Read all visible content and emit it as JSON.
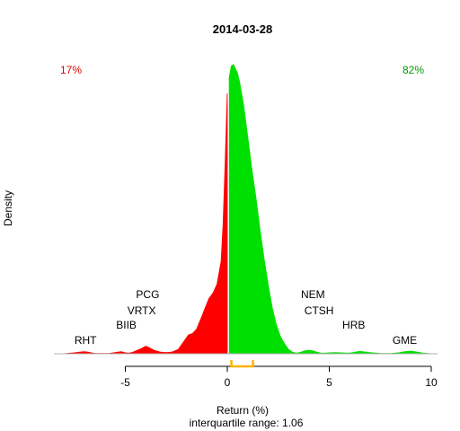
{
  "chart_data": {
    "type": "area",
    "title": "2014-03-28",
    "xlabel": "Return (%)",
    "ylabel": "Density",
    "subtitle": "interquartile range: 1.06",
    "xlim": [
      -8.5,
      10
    ],
    "ylim": [
      0,
      1
    ],
    "x_ticks": [
      -5,
      0,
      5,
      10
    ],
    "x_tick_labels": [
      "-5",
      "0",
      "5",
      "10"
    ],
    "pct_negative": "17%",
    "pct_positive": "82%",
    "colors": {
      "negative": "#ff0000",
      "positive": "#00e000",
      "iqr": "#ffb400",
      "axis": "#000000",
      "baseline": "#b0b0b0"
    },
    "iqr": [
      0.2,
      1.26
    ],
    "density": {
      "x": [
        -8,
        -7.5,
        -7.2,
        -7,
        -6.8,
        -6.5,
        -5.8,
        -5.4,
        -5.2,
        -5,
        -4.8,
        -4.6,
        -4.4,
        -4.2,
        -4,
        -3.8,
        -3.6,
        -3.3,
        -3,
        -2.7,
        -2.4,
        -2.1,
        -1.9,
        -1.7,
        -1.5,
        -1.3,
        -1.1,
        -0.9,
        -0.7,
        -0.5,
        -0.3,
        -0.2,
        -0.1,
        0,
        0.1,
        0.2,
        0.3,
        0.4,
        0.5,
        0.6,
        0.8,
        1,
        1.2,
        1.4,
        1.6,
        1.8,
        2,
        2.2,
        2.4,
        2.6,
        2.8,
        3,
        3.2,
        3.4,
        3.6,
        3.8,
        4,
        4.2,
        4.4,
        4.6,
        4.8,
        5,
        5.3,
        5.6,
        5.9,
        6.1,
        6.3,
        6.5,
        7,
        7.5,
        8,
        8.4,
        8.7,
        9,
        9.3,
        9.6,
        10
      ],
      "y": [
        0,
        0.003,
        0.006,
        0.007,
        0.005,
        0.001,
        0.001,
        0.005,
        0.007,
        0.003,
        0.002,
        0.006,
        0.012,
        0.018,
        0.026,
        0.02,
        0.012,
        0.006,
        0.004,
        0.006,
        0.015,
        0.045,
        0.065,
        0.07,
        0.085,
        0.12,
        0.155,
        0.19,
        0.21,
        0.24,
        0.32,
        0.45,
        0.66,
        0.9,
        0.955,
        0.995,
        1,
        0.985,
        0.97,
        0.94,
        0.86,
        0.75,
        0.64,
        0.54,
        0.43,
        0.33,
        0.24,
        0.16,
        0.1,
        0.06,
        0.035,
        0.015,
        0.005,
        0.002,
        0.005,
        0.01,
        0.012,
        0.01,
        0.005,
        0.002,
        0.002,
        0.003,
        0.004,
        0.003,
        0.002,
        0.003,
        0.006,
        0.008,
        0.004,
        0.001,
        0.001,
        0.003,
        0.007,
        0.009,
        0.006,
        0.002,
        0
      ]
    },
    "outlier_labels": [
      {
        "text": "RHT",
        "x": -6.95,
        "level": 1
      },
      {
        "text": "BIIB",
        "x": -4.95,
        "level": 2
      },
      {
        "text": "VRTX",
        "x": -4.2,
        "level": 3
      },
      {
        "text": "PCG",
        "x": -3.9,
        "level": 4
      },
      {
        "text": "NEM",
        "x": 4.2,
        "level": 4
      },
      {
        "text": "CTSH",
        "x": 4.5,
        "level": 3
      },
      {
        "text": "HRB",
        "x": 6.2,
        "level": 2
      },
      {
        "text": "GME",
        "x": 8.7,
        "level": 1
      }
    ]
  }
}
